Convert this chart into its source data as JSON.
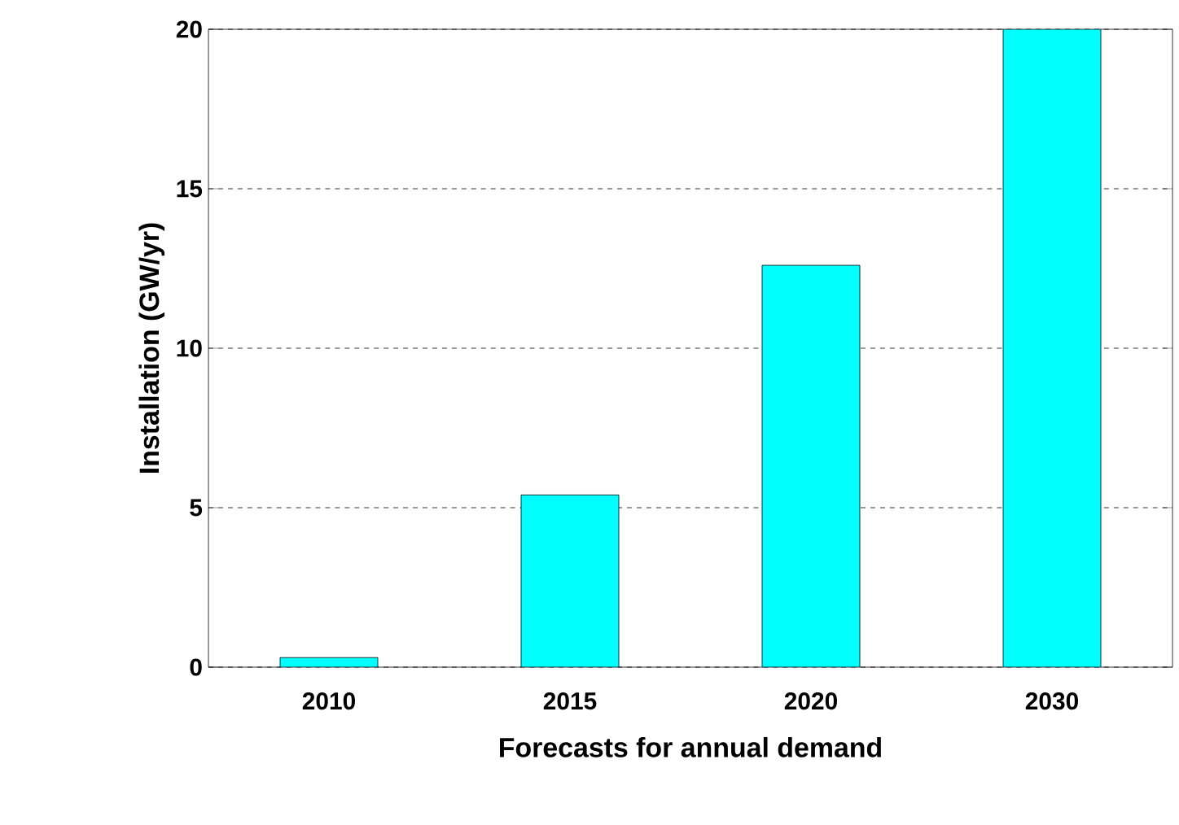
{
  "chart_data": {
    "type": "bar",
    "xlabel": "Forecasts for annual demand",
    "ylabel": "Installation (GW/yr)",
    "categories": [
      "2010",
      "2015",
      "2020",
      "2030"
    ],
    "values": [
      0.3,
      5.4,
      12.6,
      20
    ],
    "color": "#00ffff",
    "ylim": [
      0,
      20
    ],
    "yticks": [
      0,
      5,
      10,
      15,
      20
    ],
    "grid": "y"
  }
}
